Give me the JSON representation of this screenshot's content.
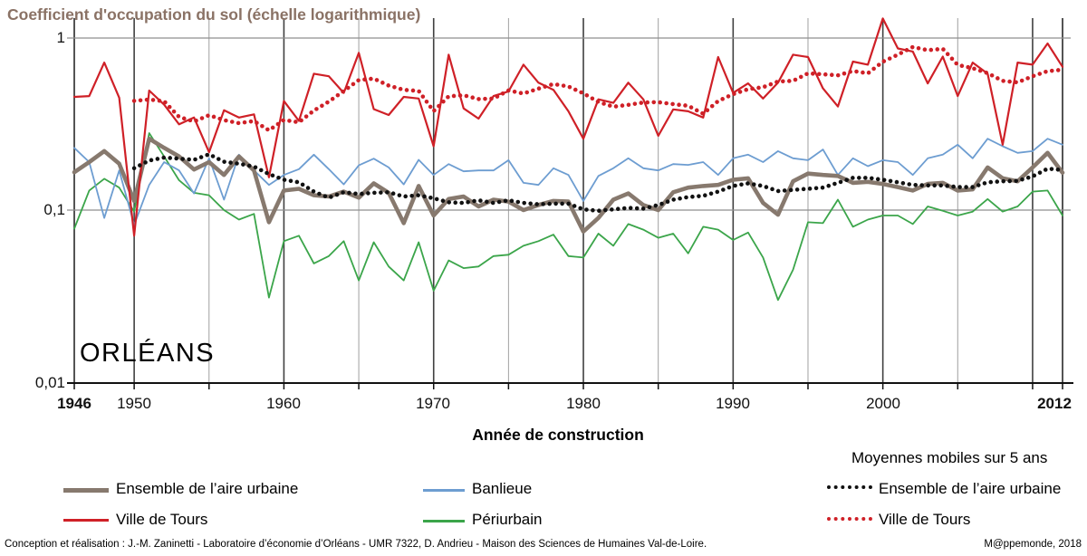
{
  "title": "Coefficient d'occupation du sol (échelle logarithmique)",
  "title_color": "#8a7265",
  "city_label": "ORLÉANS",
  "axes": {
    "x_label": "Année de construction",
    "y_ticks": [
      "1",
      "0,1",
      "0,01"
    ],
    "x_ticks": [
      "1946",
      "1950",
      "1960",
      "1970",
      "1980",
      "1990",
      "2000",
      "2012"
    ]
  },
  "legend": {
    "moving_avg_header": "Moyennes mobiles sur 5 ans",
    "ensemble": "Ensemble de l’aire urbaine",
    "tours": "Ville de Tours",
    "banlieue": "Banlieue",
    "periurbain": "Périurbain"
  },
  "caption": {
    "left": "Conception et réalisation : J.-M. Zaninetti - Laboratoire d’économie d’Orléans - UMR 7322,  D. Andrieu - Maison des Sciences de Humaines Val-de-Loire.",
    "right": "M@ppemonde, 2018"
  },
  "chart_data": {
    "type": "line",
    "title": "Coefficient d'occupation du sol (échelle logarithmique)",
    "xlabel": "Année de construction",
    "x_start": 1946,
    "x_end": 2012,
    "y_scale": "log",
    "ylim": [
      0.01,
      1.5
    ],
    "y_tick_values": [
      1,
      0.1,
      0.01
    ],
    "grid": {
      "vertical_dark_every": 10,
      "vertical_light_every": 5,
      "horizontal_at": [
        1,
        0.1
      ]
    },
    "legend_position": "bottom",
    "series": [
      {
        "name": "Périurbain",
        "style": "solid",
        "color": "#3ba54a",
        "width": 1.8,
        "x_start": 1946,
        "values": [
          0.078,
          0.13,
          0.152,
          0.135,
          0.098,
          0.28,
          0.205,
          0.149,
          0.126,
          0.122,
          0.1,
          0.088,
          0.095,
          0.031,
          0.066,
          0.071,
          0.049,
          0.054,
          0.066,
          0.039,
          0.065,
          0.047,
          0.039,
          0.065,
          0.034,
          0.051,
          0.046,
          0.047,
          0.054,
          0.055,
          0.062,
          0.066,
          0.072,
          0.054,
          0.053,
          0.073,
          0.062,
          0.083,
          0.077,
          0.069,
          0.073,
          0.056,
          0.08,
          0.077,
          0.067,
          0.074,
          0.053,
          0.03,
          0.045,
          0.085,
          0.084,
          0.115,
          0.08,
          0.088,
          0.093,
          0.093,
          0.083,
          0.105,
          0.099,
          0.093,
          0.098,
          0.116,
          0.098,
          0.105,
          0.128,
          0.13,
          0.093
        ]
      },
      {
        "name": "Banlieue",
        "style": "solid",
        "color": "#6d9dd1",
        "width": 1.8,
        "x_start": 1946,
        "values": [
          0.23,
          0.19,
          0.09,
          0.17,
          0.082,
          0.14,
          0.19,
          0.17,
          0.125,
          0.2,
          0.115,
          0.21,
          0.17,
          0.14,
          0.16,
          0.173,
          0.21,
          0.173,
          0.141,
          0.182,
          0.199,
          0.177,
          0.141,
          0.196,
          0.16,
          0.185,
          0.168,
          0.17,
          0.17,
          0.195,
          0.144,
          0.14,
          0.175,
          0.16,
          0.113,
          0.158,
          0.175,
          0.2,
          0.175,
          0.17,
          0.185,
          0.183,
          0.19,
          0.16,
          0.2,
          0.21,
          0.19,
          0.22,
          0.2,
          0.195,
          0.225,
          0.16,
          0.2,
          0.18,
          0.195,
          0.19,
          0.16,
          0.2,
          0.21,
          0.24,
          0.2,
          0.26,
          0.235,
          0.215,
          0.22,
          0.26,
          0.24
        ]
      },
      {
        "name": "Ensemble de l’aire urbaine",
        "style": "solid",
        "color": "#87796e",
        "width": 4.6,
        "x_start": 1946,
        "values": [
          0.166,
          0.19,
          0.22,
          0.186,
          0.113,
          0.26,
          0.23,
          0.205,
          0.172,
          0.19,
          0.16,
          0.205,
          0.17,
          0.085,
          0.13,
          0.133,
          0.122,
          0.12,
          0.128,
          0.118,
          0.143,
          0.126,
          0.084,
          0.138,
          0.093,
          0.116,
          0.12,
          0.105,
          0.115,
          0.112,
          0.1,
          0.107,
          0.113,
          0.112,
          0.075,
          0.09,
          0.115,
          0.125,
          0.107,
          0.1,
          0.127,
          0.135,
          0.138,
          0.14,
          0.15,
          0.153,
          0.11,
          0.094,
          0.147,
          0.163,
          0.16,
          0.158,
          0.144,
          0.146,
          0.142,
          0.136,
          0.13,
          0.142,
          0.144,
          0.13,
          0.132,
          0.177,
          0.153,
          0.147,
          0.177,
          0.215,
          0.165
        ]
      },
      {
        "name": "Ville de Tours",
        "style": "solid",
        "color": "#cf2027",
        "width": 2.2,
        "x_start": 1946,
        "values": [
          0.455,
          0.46,
          0.72,
          0.45,
          0.071,
          0.495,
          0.41,
          0.315,
          0.345,
          0.217,
          0.38,
          0.345,
          0.36,
          0.155,
          0.43,
          0.33,
          0.62,
          0.6,
          0.48,
          0.82,
          0.386,
          0.357,
          0.455,
          0.445,
          0.235,
          0.8,
          0.39,
          0.34,
          0.46,
          0.49,
          0.7,
          0.55,
          0.5,
          0.375,
          0.26,
          0.44,
          0.42,
          0.55,
          0.44,
          0.27,
          0.385,
          0.375,
          0.345,
          0.775,
          0.48,
          0.545,
          0.445,
          0.55,
          0.8,
          0.775,
          0.51,
          0.4,
          0.73,
          0.7,
          1.3,
          0.87,
          0.835,
          0.545,
          0.78,
          0.46,
          0.72,
          0.62,
          0.24,
          0.72,
          0.7,
          0.93,
          0.68
        ]
      },
      {
        "name": "Moyenne mobile 5 ans — Ensemble de l’aire urbaine",
        "style": "dots",
        "color": "#111111",
        "width": 4.6,
        "x_start": 1950,
        "values": [
          0.175,
          0.194,
          0.202,
          0.199,
          0.196,
          0.211,
          0.191,
          0.186,
          0.179,
          0.162,
          0.15,
          0.145,
          0.128,
          0.118,
          0.127,
          0.124,
          0.126,
          0.127,
          0.12,
          0.122,
          0.117,
          0.111,
          0.11,
          0.114,
          0.11,
          0.114,
          0.11,
          0.108,
          0.109,
          0.109,
          0.101,
          0.099,
          0.101,
          0.103,
          0.102,
          0.107,
          0.115,
          0.119,
          0.121,
          0.128,
          0.138,
          0.143,
          0.138,
          0.129,
          0.131,
          0.133,
          0.135,
          0.144,
          0.154,
          0.154,
          0.15,
          0.145,
          0.14,
          0.139,
          0.139,
          0.136,
          0.136,
          0.145,
          0.147,
          0.148,
          0.157,
          0.174,
          0.171
        ]
      },
      {
        "name": "Moyenne mobile 5 ans — Ville de Tours",
        "style": "dots",
        "color": "#cf2027",
        "width": 4.6,
        "x_start": 1950,
        "values": [
          0.431,
          0.439,
          0.429,
          0.348,
          0.327,
          0.356,
          0.333,
          0.32,
          0.329,
          0.291,
          0.334,
          0.324,
          0.379,
          0.427,
          0.492,
          0.57,
          0.581,
          0.529,
          0.5,
          0.493,
          0.376,
          0.458,
          0.465,
          0.442,
          0.445,
          0.496,
          0.476,
          0.508,
          0.54,
          0.523,
          0.477,
          0.425,
          0.399,
          0.409,
          0.422,
          0.424,
          0.413,
          0.404,
          0.363,
          0.43,
          0.472,
          0.504,
          0.518,
          0.559,
          0.564,
          0.623,
          0.616,
          0.607,
          0.643,
          0.623,
          0.728,
          0.8,
          0.887,
          0.85,
          0.866,
          0.698,
          0.668,
          0.625,
          0.564,
          0.552,
          0.6,
          0.642,
          0.654
        ]
      }
    ]
  },
  "layout_colors": {
    "grid_dark": "#404040",
    "grid_light": "#a0a0a0",
    "grid_horizontal": "#8f8f8f",
    "axis": "#111111"
  }
}
